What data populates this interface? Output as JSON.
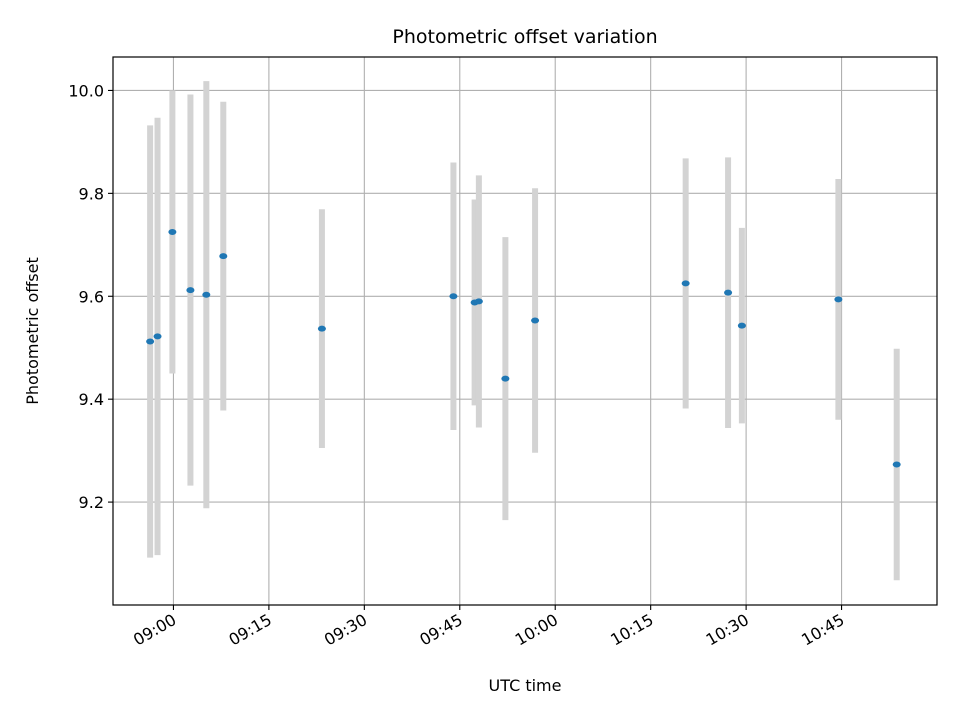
{
  "chart_data": {
    "type": "scatter",
    "title": "Photometric offset variation",
    "xlabel": "UTC time",
    "ylabel": "Photometric offset",
    "x_ticks": [
      "09:00",
      "09:15",
      "09:30",
      "09:45",
      "10:00",
      "10:15",
      "10:30",
      "10:45"
    ],
    "y_ticks": [
      "9.2",
      "9.4",
      "9.6",
      "9.8",
      "10.0"
    ],
    "xlim": [
      "08:50:30",
      "11:00:00"
    ],
    "ylim": [
      9.0,
      10.065
    ],
    "grid": true,
    "colors": {
      "point": "#1f77b4",
      "errorbar": "#d3d3d3",
      "grid": "#b0b0b0"
    },
    "points": [
      {
        "x": "08:56:20",
        "y": 9.512,
        "yerr": 0.42
      },
      {
        "x": "08:57:30",
        "y": 9.522,
        "yerr": 0.425
      },
      {
        "x": "08:59:50",
        "y": 9.725,
        "yerr": 0.275
      },
      {
        "x": "09:02:40",
        "y": 9.612,
        "yerr": 0.38
      },
      {
        "x": "09:05:10",
        "y": 9.603,
        "yerr": 0.415
      },
      {
        "x": "09:07:50",
        "y": 9.678,
        "yerr": 0.3
      },
      {
        "x": "09:23:20",
        "y": 9.537,
        "yerr": 0.232
      },
      {
        "x": "09:44:00",
        "y": 9.6,
        "yerr": 0.26
      },
      {
        "x": "09:47:20",
        "y": 9.588,
        "yerr": 0.2
      },
      {
        "x": "09:48:00",
        "y": 9.59,
        "yerr": 0.245
      },
      {
        "x": "09:52:10",
        "y": 9.44,
        "yerr": 0.275
      },
      {
        "x": "09:56:50",
        "y": 9.553,
        "yerr": 0.257
      },
      {
        "x": "10:20:30",
        "y": 9.625,
        "yerr": 0.243
      },
      {
        "x": "10:27:10",
        "y": 9.607,
        "yerr": 0.263
      },
      {
        "x": "10:29:20",
        "y": 9.543,
        "yerr": 0.19
      },
      {
        "x": "10:44:30",
        "y": 9.594,
        "yerr": 0.234
      },
      {
        "x": "10:53:40",
        "y": 9.273,
        "yerr": 0.225
      }
    ]
  }
}
